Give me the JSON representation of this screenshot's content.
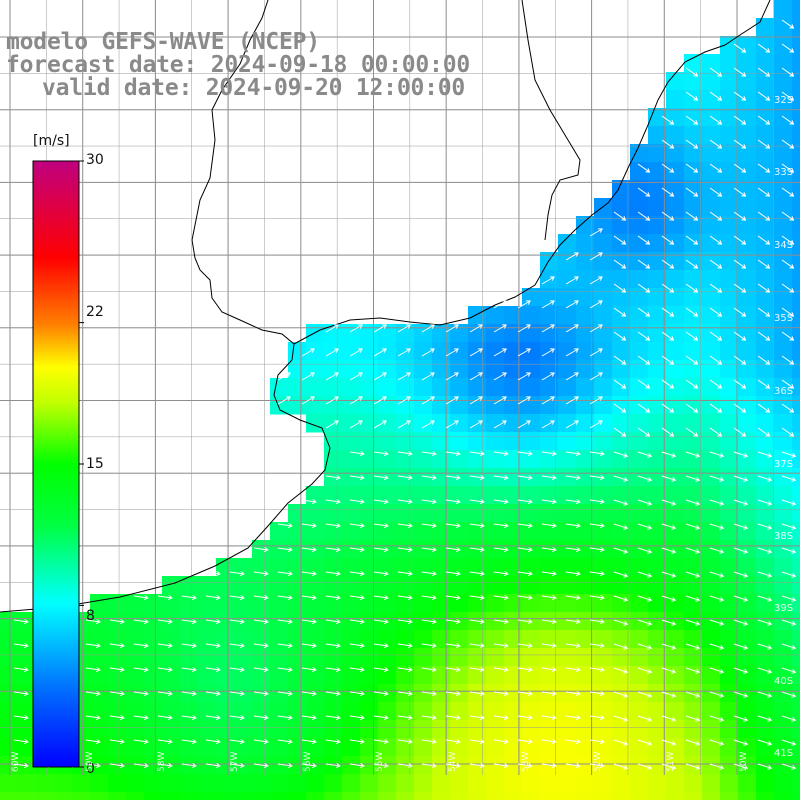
{
  "header": {
    "model_line": "modelo GEFS-WAVE (NCEP)",
    "forecast_line": "forecast date: 2024-09-18 00:00:00",
    "valid_line": "valid date: 2024-09-20 12:00:00"
  },
  "colorbar": {
    "unit": "[m/s]",
    "ticks": [
      "30",
      "22",
      "15",
      "8",
      "0"
    ],
    "tick_values": [
      30,
      22,
      15,
      8,
      0
    ],
    "range": [
      0,
      30
    ],
    "colors": [
      "#0000ff",
      "#0090ff",
      "#00ffff",
      "#00ff00",
      "#ffff00",
      "#ff8000",
      "#ff0000",
      "#c00080"
    ]
  },
  "map": {
    "lat_labels": [
      "32S",
      "33S",
      "34S",
      "35S",
      "36S",
      "37S",
      "38S",
      "39S",
      "40S",
      "41S"
    ],
    "lon_labels": [
      "60W",
      "59W",
      "58W",
      "57W",
      "56W",
      "55W",
      "54W",
      "53W",
      "52W",
      "51W",
      "50W"
    ],
    "land_color": "#ffffff",
    "grid_color": "#808080",
    "coast_color": "#000000",
    "vector_color": "#ffffff"
  }
}
